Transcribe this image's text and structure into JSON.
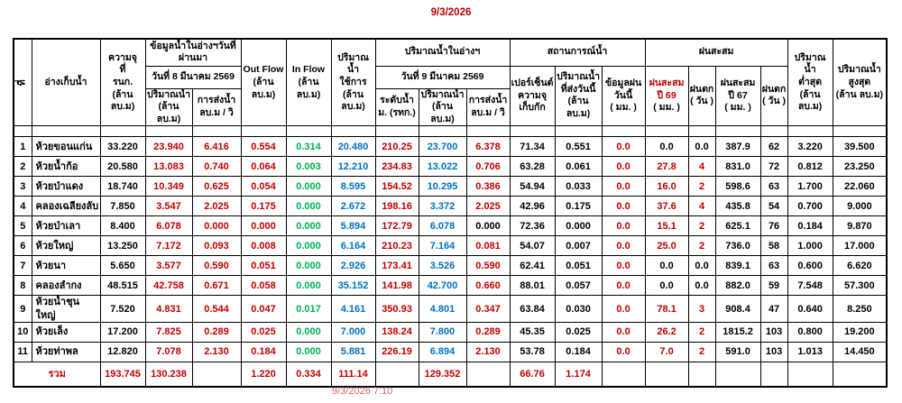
{
  "page": {
    "date_title": "9/3/2026",
    "footer_timestamp": "9/3/2026 7:10"
  },
  "table": {
    "headers": {
      "no": "ที่",
      "reservoir": "อ่างเก็บน้ำ",
      "capacity": "ความจุ\nที่\nรนก.\n(ล้าน ลบ.ม)",
      "prev_group": "ข้อมูลน้ำในอ่างฯวันที่ผ่านมา",
      "prev_date": "วันที่ 8 มีนาคม 2569",
      "prev_volume": "ปริมาณน้ำ\n(ล้าน ลบ.ม)",
      "prev_discharge": "การส่งน้ำ\nลบ.ม / วิ",
      "outflow_title": "Out Flow",
      "outflow_unit": "(ล้าน ลบ.ม)",
      "inflow_title": "In Flow",
      "inflow_unit": "(ล้าน ลบ.ม)",
      "usable": "ปริมาณน้ำ\nใช้การ\n(ล้าน ลบ.ม)",
      "today_group": "ปริมาณน้ำในอ่างฯ",
      "today_date": "วันที่ 9 มีนาคม 2569",
      "today_level": "ระดับน้ำ\nม. (รทก.)",
      "today_volume": "ปริมาณน้ำ\n(ล้าน ลบ.ม)",
      "today_discharge": "การส่งน้ำ\nลบ.ม / วิ",
      "status_group": "สถานการณ์น้ำ",
      "percent_capacity": "เปอร์เซ็นต์\nความจุ\nเก็บกัก",
      "sent_today": "ปริมาณน้ำ\nที่ส่งวันนี้\n(ล้าน ลบ.ม)",
      "rain_today": "ข้อมูลฝน\nวันนี้\n( มม. )",
      "rain_group": "ฝนสะสม",
      "rain69_title": "ฝนสะสม\nปี 69",
      "rain69_unit": "( มม. )",
      "rainday69": "ฝนตก\n( วัน )",
      "rain67": "ฝนสะสม\nปี 67\n( มม. )",
      "rainday67": "ฝนตก\n( วัน )",
      "min_volume": "ปริมาณน้ำ\nต่ำสุด\n(ล้าน ลบ.ม)",
      "max_volume": "ปริมาณน้ำ\nสูงสุด\n(ล้าน ลบ.ม)"
    },
    "color_map": {
      "k": "#000000",
      "r": "#C00000",
      "b": "#0070C0",
      "g": "#00B050"
    },
    "rows": [
      {
        "no": "1",
        "name": "ห้วยขอนแก่น",
        "cells": [
          [
            "33.220",
            "k"
          ],
          [
            "23.940",
            "r"
          ],
          [
            "6.416",
            "r"
          ],
          [
            "0.554",
            "r"
          ],
          [
            "0.314",
            "g"
          ],
          [
            "20.480",
            "b"
          ],
          [
            "210.25",
            "r"
          ],
          [
            "23.700",
            "b"
          ],
          [
            "6.378",
            "r"
          ],
          [
            "71.34",
            "k"
          ],
          [
            "0.551",
            "k"
          ],
          [
            "0.0",
            "r"
          ],
          [
            "0.0",
            "k"
          ],
          [
            "0.0",
            "k"
          ],
          [
            "387.9",
            "k"
          ],
          [
            "62",
            "k"
          ],
          [
            "3.220",
            "k"
          ],
          [
            "39.500",
            "k"
          ]
        ]
      },
      {
        "no": "2",
        "name": "ห้วยน้ำก้อ",
        "cells": [
          [
            "20.580",
            "k"
          ],
          [
            "13.083",
            "r"
          ],
          [
            "0.740",
            "r"
          ],
          [
            "0.064",
            "r"
          ],
          [
            "0.003",
            "g"
          ],
          [
            "12.210",
            "b"
          ],
          [
            "234.83",
            "r"
          ],
          [
            "13.022",
            "b"
          ],
          [
            "0.706",
            "r"
          ],
          [
            "63.28",
            "k"
          ],
          [
            "0.061",
            "k"
          ],
          [
            "0.0",
            "r"
          ],
          [
            "27.8",
            "r"
          ],
          [
            "4",
            "r"
          ],
          [
            "831.0",
            "k"
          ],
          [
            "72",
            "k"
          ],
          [
            "0.812",
            "k"
          ],
          [
            "23.250",
            "k"
          ]
        ]
      },
      {
        "no": "3",
        "name": "ห้วยป่าแดง",
        "cells": [
          [
            "18.740",
            "k"
          ],
          [
            "10.349",
            "r"
          ],
          [
            "0.625",
            "r"
          ],
          [
            "0.054",
            "r"
          ],
          [
            "0.000",
            "g"
          ],
          [
            "8.595",
            "b"
          ],
          [
            "154.52",
            "r"
          ],
          [
            "10.295",
            "b"
          ],
          [
            "0.386",
            "r"
          ],
          [
            "54.94",
            "k"
          ],
          [
            "0.033",
            "k"
          ],
          [
            "0.0",
            "r"
          ],
          [
            "16.0",
            "r"
          ],
          [
            "2",
            "r"
          ],
          [
            "598.6",
            "k"
          ],
          [
            "63",
            "k"
          ],
          [
            "1.700",
            "k"
          ],
          [
            "22.060",
            "k"
          ]
        ]
      },
      {
        "no": "4",
        "name": "คลองเฉลียงลับ",
        "cells": [
          [
            "7.850",
            "k"
          ],
          [
            "3.547",
            "r"
          ],
          [
            "2.025",
            "r"
          ],
          [
            "0.175",
            "r"
          ],
          [
            "0.000",
            "g"
          ],
          [
            "2.672",
            "b"
          ],
          [
            "198.16",
            "r"
          ],
          [
            "3.372",
            "b"
          ],
          [
            "2.025",
            "r"
          ],
          [
            "42.96",
            "k"
          ],
          [
            "0.175",
            "k"
          ],
          [
            "0.0",
            "r"
          ],
          [
            "37.6",
            "r"
          ],
          [
            "4",
            "r"
          ],
          [
            "435.8",
            "k"
          ],
          [
            "54",
            "k"
          ],
          [
            "0.700",
            "k"
          ],
          [
            "9.000",
            "k"
          ]
        ]
      },
      {
        "no": "5",
        "name": "ห้วยป่าเลา",
        "cells": [
          [
            "8.400",
            "k"
          ],
          [
            "6.078",
            "r"
          ],
          [
            "0.000",
            "r"
          ],
          [
            "0.000",
            "r"
          ],
          [
            "0.000",
            "g"
          ],
          [
            "5.894",
            "b"
          ],
          [
            "172.79",
            "r"
          ],
          [
            "6.078",
            "b"
          ],
          [
            "0.000",
            "k"
          ],
          [
            "72.36",
            "k"
          ],
          [
            "0.000",
            "k"
          ],
          [
            "0.0",
            "r"
          ],
          [
            "15.1",
            "r"
          ],
          [
            "2",
            "r"
          ],
          [
            "625.1",
            "k"
          ],
          [
            "76",
            "k"
          ],
          [
            "0.184",
            "k"
          ],
          [
            "9.870",
            "k"
          ]
        ]
      },
      {
        "no": "6",
        "name": "ห้วยใหญ่",
        "cells": [
          [
            "13.250",
            "k"
          ],
          [
            "7.172",
            "r"
          ],
          [
            "0.093",
            "r"
          ],
          [
            "0.008",
            "r"
          ],
          [
            "0.000",
            "g"
          ],
          [
            "6.164",
            "b"
          ],
          [
            "210.23",
            "r"
          ],
          [
            "7.164",
            "b"
          ],
          [
            "0.081",
            "r"
          ],
          [
            "54.07",
            "k"
          ],
          [
            "0.007",
            "k"
          ],
          [
            "0.0",
            "r"
          ],
          [
            "25.0",
            "r"
          ],
          [
            "2",
            "r"
          ],
          [
            "736.0",
            "k"
          ],
          [
            "58",
            "k"
          ],
          [
            "1.000",
            "k"
          ],
          [
            "17.000",
            "k"
          ]
        ]
      },
      {
        "no": "7",
        "name": "ห้วยนา",
        "cells": [
          [
            "5.650",
            "k"
          ],
          [
            "3.577",
            "r"
          ],
          [
            "0.590",
            "r"
          ],
          [
            "0.051",
            "r"
          ],
          [
            "0.000",
            "g"
          ],
          [
            "2.926",
            "b"
          ],
          [
            "173.41",
            "r"
          ],
          [
            "3.526",
            "b"
          ],
          [
            "0.590",
            "r"
          ],
          [
            "62.41",
            "k"
          ],
          [
            "0.051",
            "k"
          ],
          [
            "0.0",
            "r"
          ],
          [
            "0.0",
            "k"
          ],
          [
            "0.0",
            "k"
          ],
          [
            "839.1",
            "k"
          ],
          [
            "63",
            "k"
          ],
          [
            "0.600",
            "k"
          ],
          [
            "6.620",
            "k"
          ]
        ]
      },
      {
        "no": "8",
        "name": "คลองลำกง",
        "cells": [
          [
            "48.515",
            "k"
          ],
          [
            "42.758",
            "r"
          ],
          [
            "0.671",
            "r"
          ],
          [
            "0.058",
            "r"
          ],
          [
            "0.000",
            "g"
          ],
          [
            "35.152",
            "b"
          ],
          [
            "141.98",
            "r"
          ],
          [
            "42.700",
            "b"
          ],
          [
            "0.660",
            "r"
          ],
          [
            "88.01",
            "k"
          ],
          [
            "0.057",
            "k"
          ],
          [
            "0.0",
            "r"
          ],
          [
            "0.0",
            "k"
          ],
          [
            "0.0",
            "k"
          ],
          [
            "882.0",
            "k"
          ],
          [
            "59",
            "k"
          ],
          [
            "7.548",
            "k"
          ],
          [
            "57.300",
            "k"
          ]
        ]
      },
      {
        "no": "9",
        "name": "ห้วยน้ำชุนใหญ่",
        "cells": [
          [
            "7.520",
            "k"
          ],
          [
            "4.831",
            "r"
          ],
          [
            "0.544",
            "r"
          ],
          [
            "0.047",
            "r"
          ],
          [
            "0.017",
            "g"
          ],
          [
            "4.161",
            "b"
          ],
          [
            "350.93",
            "r"
          ],
          [
            "4.801",
            "b"
          ],
          [
            "0.347",
            "r"
          ],
          [
            "63.84",
            "k"
          ],
          [
            "0.030",
            "k"
          ],
          [
            "0.0",
            "r"
          ],
          [
            "78.1",
            "r"
          ],
          [
            "3",
            "r"
          ],
          [
            "908.4",
            "k"
          ],
          [
            "47",
            "k"
          ],
          [
            "0.640",
            "k"
          ],
          [
            "8.250",
            "k"
          ]
        ]
      },
      {
        "no": "10",
        "name": "ห้วยเล็ง",
        "cells": [
          [
            "17.200",
            "k"
          ],
          [
            "7.825",
            "r"
          ],
          [
            "0.289",
            "r"
          ],
          [
            "0.025",
            "r"
          ],
          [
            "0.000",
            "g"
          ],
          [
            "7.000",
            "b"
          ],
          [
            "138.24",
            "r"
          ],
          [
            "7.800",
            "b"
          ],
          [
            "0.289",
            "r"
          ],
          [
            "45.35",
            "k"
          ],
          [
            "0.025",
            "k"
          ],
          [
            "0.0",
            "r"
          ],
          [
            "26.2",
            "r"
          ],
          [
            "2",
            "r"
          ],
          [
            "1815.2",
            "k"
          ],
          [
            "103",
            "k"
          ],
          [
            "0.800",
            "k"
          ],
          [
            "19.200",
            "k"
          ]
        ]
      },
      {
        "no": "11",
        "name": "ห้วยท่าพล",
        "cells": [
          [
            "12.820",
            "k"
          ],
          [
            "7.078",
            "r"
          ],
          [
            "2.130",
            "r"
          ],
          [
            "0.184",
            "r"
          ],
          [
            "0.000",
            "g"
          ],
          [
            "5.881",
            "b"
          ],
          [
            "226.19",
            "r"
          ],
          [
            "6.894",
            "b"
          ],
          [
            "2.130",
            "r"
          ],
          [
            "53.78",
            "k"
          ],
          [
            "0.184",
            "k"
          ],
          [
            "0.0",
            "r"
          ],
          [
            "7.0",
            "r"
          ],
          [
            "2",
            "r"
          ],
          [
            "591.0",
            "k"
          ],
          [
            "103",
            "k"
          ],
          [
            "1.013",
            "k"
          ],
          [
            "14.450",
            "k"
          ]
        ]
      }
    ],
    "total": {
      "label": "รวม",
      "cells": [
        [
          "193.745",
          "r"
        ],
        [
          "130.238",
          "r"
        ],
        [
          "",
          "k"
        ],
        [
          "1.220",
          "r"
        ],
        [
          "0.334",
          "r"
        ],
        [
          "111.14",
          "r"
        ],
        [
          "",
          "k"
        ],
        [
          "129.352",
          "r"
        ],
        [
          "",
          "k"
        ],
        [
          "66.76",
          "r"
        ],
        [
          "1.174",
          "r"
        ],
        [
          "",
          "k"
        ],
        [
          "",
          "k"
        ],
        [
          "",
          "k"
        ],
        [
          "",
          "k"
        ],
        [
          "",
          "k"
        ],
        [
          "",
          "k"
        ],
        [
          "",
          "k"
        ]
      ]
    }
  }
}
